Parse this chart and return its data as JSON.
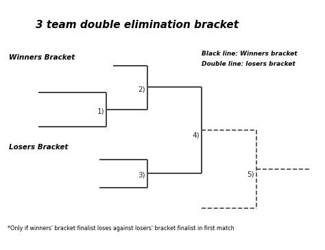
{
  "title": "3 team double elimination bracket",
  "title_fontsize": 11,
  "title_style": "italic",
  "title_weight": "bold",
  "winners_bracket_label": "Winners Bracket",
  "losers_bracket_label": "Losers Bracket",
  "legend_line1": "Black line: Winners bracket",
  "legend_line2": "Double line: losers bracket",
  "footnote": "*Only if winners' bracket finalist loses against losers' bracket finalist in first match",
  "bg_color": "#ffffff",
  "line_color": "#404040",
  "dashed_color": "#404040",
  "solid_lw": 1.4,
  "dashed_lw": 1.2,
  "match_labels": [
    "1)",
    "2)",
    "3)",
    "4)",
    "5)"
  ]
}
